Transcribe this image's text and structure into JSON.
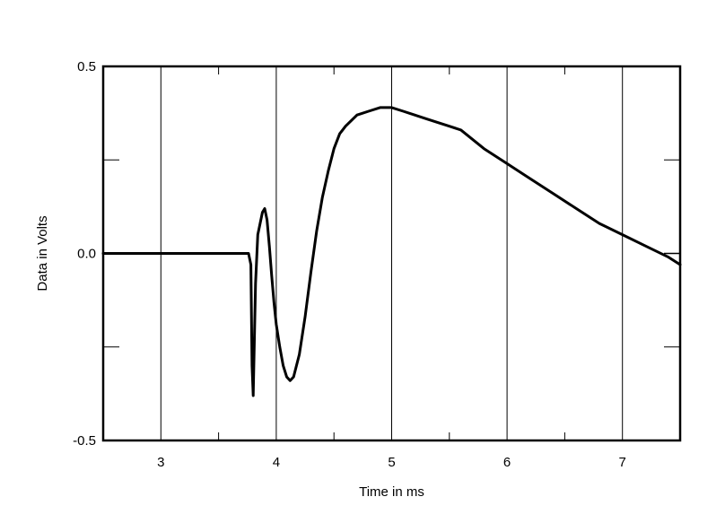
{
  "chart_data": {
    "type": "line",
    "title": "",
    "xlabel": "Time in ms",
    "ylabel": "Data in Volts",
    "xlim": [
      2.5,
      7.5
    ],
    "ylim": [
      -0.5,
      0.5
    ],
    "x_ticks": [
      3,
      4,
      5,
      6,
      7
    ],
    "x_tick_labels": [
      "3",
      "4",
      "5",
      "6",
      "7"
    ],
    "y_ticks": [
      -0.5,
      0.0,
      0.5
    ],
    "y_tick_labels": [
      "-0.5",
      "0.0",
      "0.5"
    ],
    "y_minor_ticks": [
      -0.25,
      0.25
    ],
    "x_minor_ticks": [
      3.5,
      4.5,
      5.5,
      6.5
    ],
    "grid": "vertical lines at labeled x ticks",
    "legend": "none",
    "series": [
      {
        "color": "#000000",
        "x": [
          2.5,
          3.0,
          3.5,
          3.76,
          3.78,
          3.79,
          3.8,
          3.82,
          3.84,
          3.86,
          3.88,
          3.9,
          3.92,
          3.94,
          3.96,
          3.98,
          4.0,
          4.03,
          4.06,
          4.09,
          4.12,
          4.15,
          4.2,
          4.25,
          4.3,
          4.35,
          4.4,
          4.45,
          4.5,
          4.55,
          4.6,
          4.7,
          4.8,
          4.9,
          5.0,
          5.1,
          5.2,
          5.3,
          5.4,
          5.5,
          5.6,
          5.8,
          6.0,
          6.2,
          6.4,
          6.6,
          6.8,
          7.0,
          7.2,
          7.4,
          7.5
        ],
        "y": [
          0.0,
          0.0,
          0.0,
          0.0,
          -0.03,
          -0.3,
          -0.38,
          -0.08,
          0.05,
          0.08,
          0.11,
          0.12,
          0.09,
          0.02,
          -0.06,
          -0.13,
          -0.19,
          -0.25,
          -0.3,
          -0.33,
          -0.34,
          -0.33,
          -0.27,
          -0.17,
          -0.05,
          0.06,
          0.15,
          0.22,
          0.28,
          0.32,
          0.34,
          0.37,
          0.38,
          0.39,
          0.39,
          0.38,
          0.37,
          0.36,
          0.35,
          0.34,
          0.33,
          0.28,
          0.24,
          0.2,
          0.16,
          0.12,
          0.08,
          0.05,
          0.02,
          -0.01,
          -0.03
        ]
      }
    ]
  }
}
